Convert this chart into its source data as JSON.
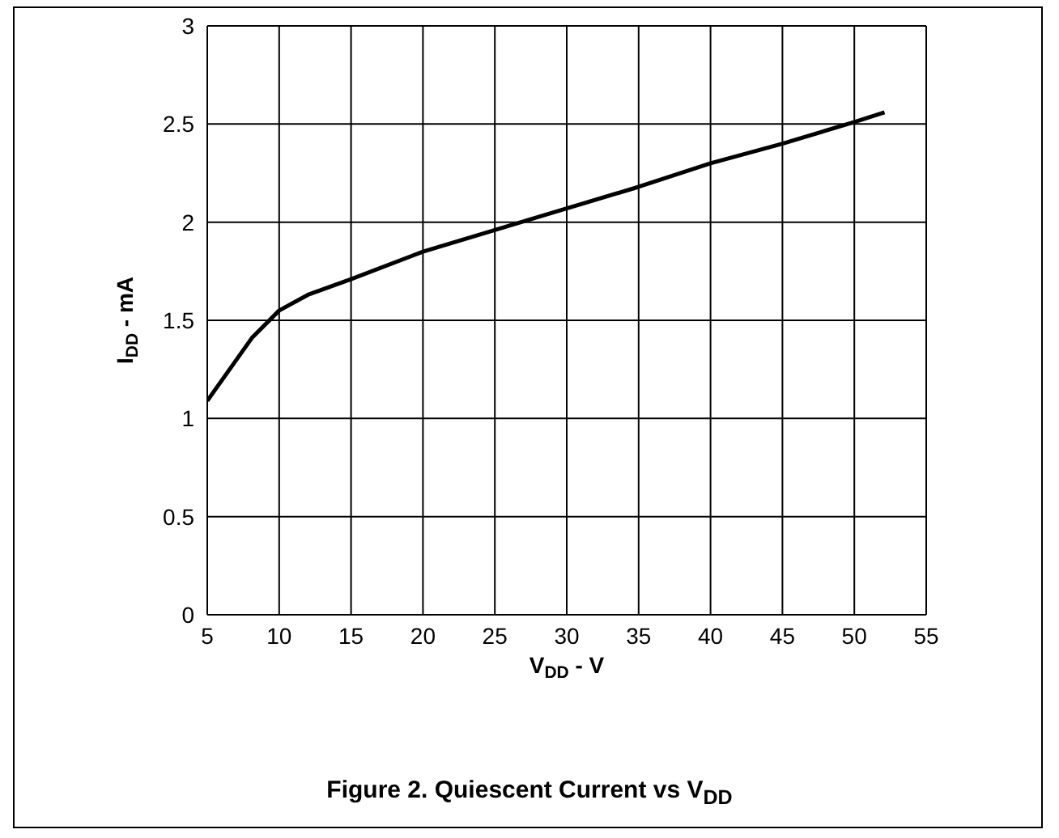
{
  "chart_data": {
    "type": "line",
    "title": "Figure 2. Quiescent Current vs V$_{DD}$",
    "xlabel": "V$_{DD}$ - V",
    "ylabel": "I$_{DD}$ - mA",
    "x": [
      5,
      8.1,
      10,
      12,
      15,
      20,
      25,
      30,
      35,
      40,
      45,
      50,
      52.1
    ],
    "series": [
      {
        "color": "#000000",
        "values": [
          1.09,
          1.41,
          1.55,
          1.63,
          1.71,
          1.85,
          1.96,
          2.07,
          2.18,
          2.3,
          2.4,
          2.51,
          2.56
        ]
      }
    ],
    "xlim": [
      5,
      55
    ],
    "xticks": [
      5,
      10,
      15,
      20,
      25,
      30,
      35,
      40,
      45,
      50,
      55
    ],
    "ylim": [
      0,
      3
    ],
    "yticks": [
      0,
      0.5,
      1,
      1.5,
      2,
      2.5,
      3
    ],
    "grid": true,
    "legend": false,
    "marker": "none",
    "line_style": "solid"
  }
}
